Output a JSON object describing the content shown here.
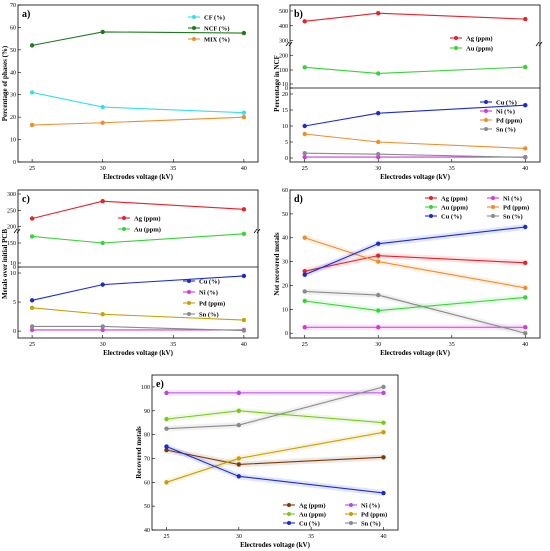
{
  "chart_data": [
    {
      "id": "a",
      "panel_label": "a)",
      "type": "line",
      "x": [
        25,
        30,
        40
      ],
      "xlabel": "Electrodes voltage (kV)",
      "ylabel": "Percentage of phases (%)",
      "xlim": [
        24,
        41
      ],
      "ylim": [
        0,
        70
      ],
      "xticks": [
        "25",
        "30",
        "35",
        "40"
      ],
      "yticks": [
        "0",
        "10",
        "20",
        "30",
        "40",
        "50",
        "60",
        "70"
      ],
      "legend_position": "top-right",
      "series": [
        {
          "name": "CF (%)",
          "values": [
            31,
            24.5,
            22
          ],
          "color": "#36e0e8"
        },
        {
          "name": "NCF (%)",
          "values": [
            52,
            58,
            57.5
          ],
          "color": "#1f7a1f"
        },
        {
          "name": "MIX (%)",
          "values": [
            16.5,
            17.5,
            20
          ],
          "color": "#f28c28"
        }
      ]
    },
    {
      "id": "b",
      "panel_label": "b)",
      "type": "line",
      "broken_axis": true,
      "x": [
        25,
        30,
        40
      ],
      "xlabel": "Electrodes voltage (kV)",
      "ylabel": "Percentage in NCF",
      "xlim": [
        24,
        41
      ],
      "xticks": [
        "25",
        "30",
        "35",
        "40"
      ],
      "upper": {
        "ylim": [
          0,
          500
        ],
        "yticks": [
          "0",
          "10",
          "100",
          "200",
          "300",
          "400",
          "500"
        ],
        "legend_position": "center-right",
        "series": [
          {
            "name": "Ag (ppm)",
            "values": [
              430,
              485,
              445
            ],
            "color": "#e8202a"
          },
          {
            "name": "Au (ppm)",
            "values": [
              118,
              78,
              120
            ],
            "color": "#36d436"
          }
        ]
      },
      "lower": {
        "ylim": [
          0,
          20
        ],
        "yticks": [
          "0",
          "5",
          "10",
          "15",
          "20"
        ],
        "legend_position": "right",
        "series": [
          {
            "name": "Cu (%)",
            "values": [
              10,
              14,
              16.5
            ],
            "color": "#1a2bd6"
          },
          {
            "name": "Ni (%)",
            "values": [
              0.3,
              0.3,
              0.3
            ],
            "color": "#d63ad6"
          },
          {
            "name": "Pd (ppm)",
            "values": [
              7.5,
              5,
              3
            ],
            "color": "#f28c28"
          },
          {
            "name": "Sn (%)",
            "values": [
              1.5,
              1.2,
              0.2
            ],
            "color": "#8a8a8a"
          }
        ]
      }
    },
    {
      "id": "c",
      "panel_label": "c)",
      "type": "line",
      "broken_axis": true,
      "x": [
        25,
        30,
        40
      ],
      "xlabel": "Electrodes voltage (kV)",
      "ylabel": "Metals over initial PCB",
      "xlim": [
        24,
        41
      ],
      "xticks": [
        "25",
        "30",
        "35",
        "40"
      ],
      "upper": {
        "ylim": [
          0,
          300
        ],
        "yticks": [
          "0",
          "10",
          "150",
          "200",
          "250",
          "300"
        ],
        "legend_position": "center-right",
        "series": [
          {
            "name": "Ag (ppm)",
            "values": [
              225,
              278,
              253
            ],
            "color": "#e8202a"
          },
          {
            "name": "Au (ppm)",
            "values": [
              170,
              150,
              178
            ],
            "color": "#36d436"
          }
        ]
      },
      "lower": {
        "ylim": [
          -0.5,
          10
        ],
        "yticks": [
          "0",
          "5",
          "10"
        ],
        "legend_position": "right",
        "series": [
          {
            "name": "Cu (%)",
            "values": [
              5.3,
              8,
              9.5
            ],
            "color": "#1a2bd6"
          },
          {
            "name": "Ni (%)",
            "values": [
              0.2,
              0.2,
              0.2
            ],
            "color": "#d63ad6"
          },
          {
            "name": "Pd (ppm)",
            "values": [
              4,
              2.9,
              1.9
            ],
            "color": "#c8a000"
          },
          {
            "name": "Sn (%)",
            "values": [
              0.8,
              0.8,
              0.1
            ],
            "color": "#8a8a8a"
          }
        ]
      }
    },
    {
      "id": "d",
      "panel_label": "d)",
      "type": "line",
      "x": [
        25,
        30,
        40
      ],
      "xlabel": "Electrodes voltage (kV)",
      "ylabel": "Not recovered metals",
      "xlim": [
        24,
        41
      ],
      "ylim": [
        -2,
        60
      ],
      "xticks": [
        "25",
        "30",
        "35",
        "40"
      ],
      "yticks": [
        "0",
        "10",
        "20",
        "30",
        "40",
        "50",
        "60"
      ],
      "legend_position": "top-right",
      "series": [
        {
          "name": "Ag (ppm)",
          "values": [
            26,
            32.5,
            29.5
          ],
          "color": "#e8202a"
        },
        {
          "name": "Ni (%)",
          "values": [
            2.5,
            2.5,
            2.5
          ],
          "color": "#d63ad6"
        },
        {
          "name": "Au (ppm)",
          "values": [
            13.5,
            9.5,
            15
          ],
          "color": "#36d436"
        },
        {
          "name": "Pd (ppm)",
          "values": [
            40,
            30,
            19
          ],
          "color": "#f28c28"
        },
        {
          "name": "Cu (%)",
          "values": [
            24.5,
            37.5,
            44.5
          ],
          "color": "#1a2bd6"
        },
        {
          "name": "Sn (%)",
          "values": [
            17.5,
            16,
            0
          ],
          "color": "#8a8a8a"
        }
      ]
    },
    {
      "id": "e",
      "panel_label": "e)",
      "type": "line",
      "x": [
        25,
        30,
        40
      ],
      "xlabel": "Electrodes voltage (kV)",
      "ylabel": "Recovered metals",
      "xlim": [
        24,
        41
      ],
      "ylim": [
        40,
        105
      ],
      "xticks": [
        "25",
        "30",
        "35",
        "40"
      ],
      "yticks": [
        "40",
        "50",
        "60",
        "70",
        "80",
        "90",
        "100"
      ],
      "legend_position": "bottom-right",
      "series": [
        {
          "name": "Ag (ppm)",
          "values": [
            73.5,
            67.5,
            70.5
          ],
          "color": "#7a3a0a"
        },
        {
          "name": "Ni (%)",
          "values": [
            97.5,
            97.5,
            97.5
          ],
          "color": "#b44ae0"
        },
        {
          "name": "Au (ppm)",
          "values": [
            86.5,
            90,
            85
          ],
          "color": "#7ac81e"
        },
        {
          "name": "Pd (ppm)",
          "values": [
            60,
            70,
            81
          ],
          "color": "#c8a000"
        },
        {
          "name": "Cu (%)",
          "values": [
            75,
            62.5,
            55.5
          ],
          "color": "#1a2bd6"
        },
        {
          "name": "Sn (%)",
          "values": [
            82.5,
            84,
            100
          ],
          "color": "#8a8a8a"
        }
      ]
    }
  ]
}
